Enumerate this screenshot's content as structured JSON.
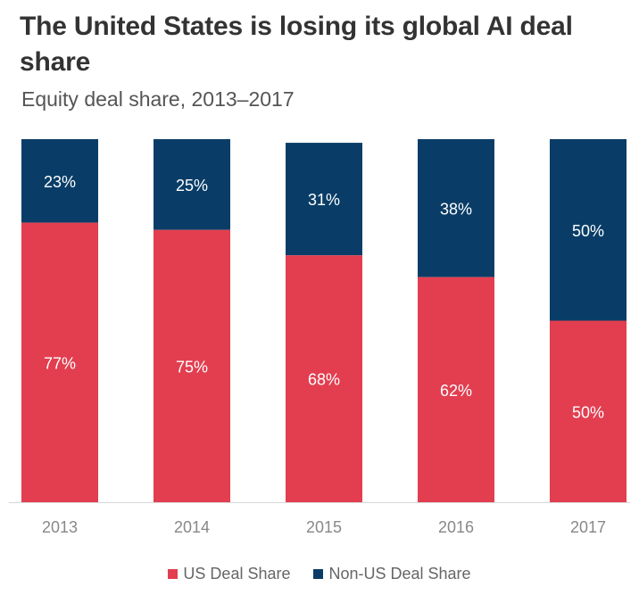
{
  "title": "The United States is losing its global AI deal share",
  "subtitle": "Equity deal share, 2013–2017",
  "colors": {
    "us": "#e23e50",
    "non_us": "#093d67",
    "axis_text": "#888888",
    "label_text": "#ffffff"
  },
  "chart_data": {
    "type": "bar",
    "stacked": true,
    "title": "The United States is losing its global AI deal share",
    "subtitle": "Equity deal share, 2013–2017",
    "categories": [
      "2013",
      "2014",
      "2015",
      "2016",
      "2017"
    ],
    "series": [
      {
        "name": "US Deal Share",
        "values": [
          77,
          75,
          68,
          62,
          50
        ],
        "labels": [
          "77%",
          "75%",
          "68%",
          "62%",
          "50%"
        ]
      },
      {
        "name": "Non-US Deal Share",
        "values": [
          23,
          25,
          31,
          38,
          50
        ],
        "labels": [
          "23%",
          "25%",
          "31%",
          "38%",
          "50%"
        ]
      }
    ],
    "xlabel": "",
    "ylabel": "",
    "ylim": [
      0,
      100
    ],
    "grid": false,
    "legend_position": "bottom"
  }
}
